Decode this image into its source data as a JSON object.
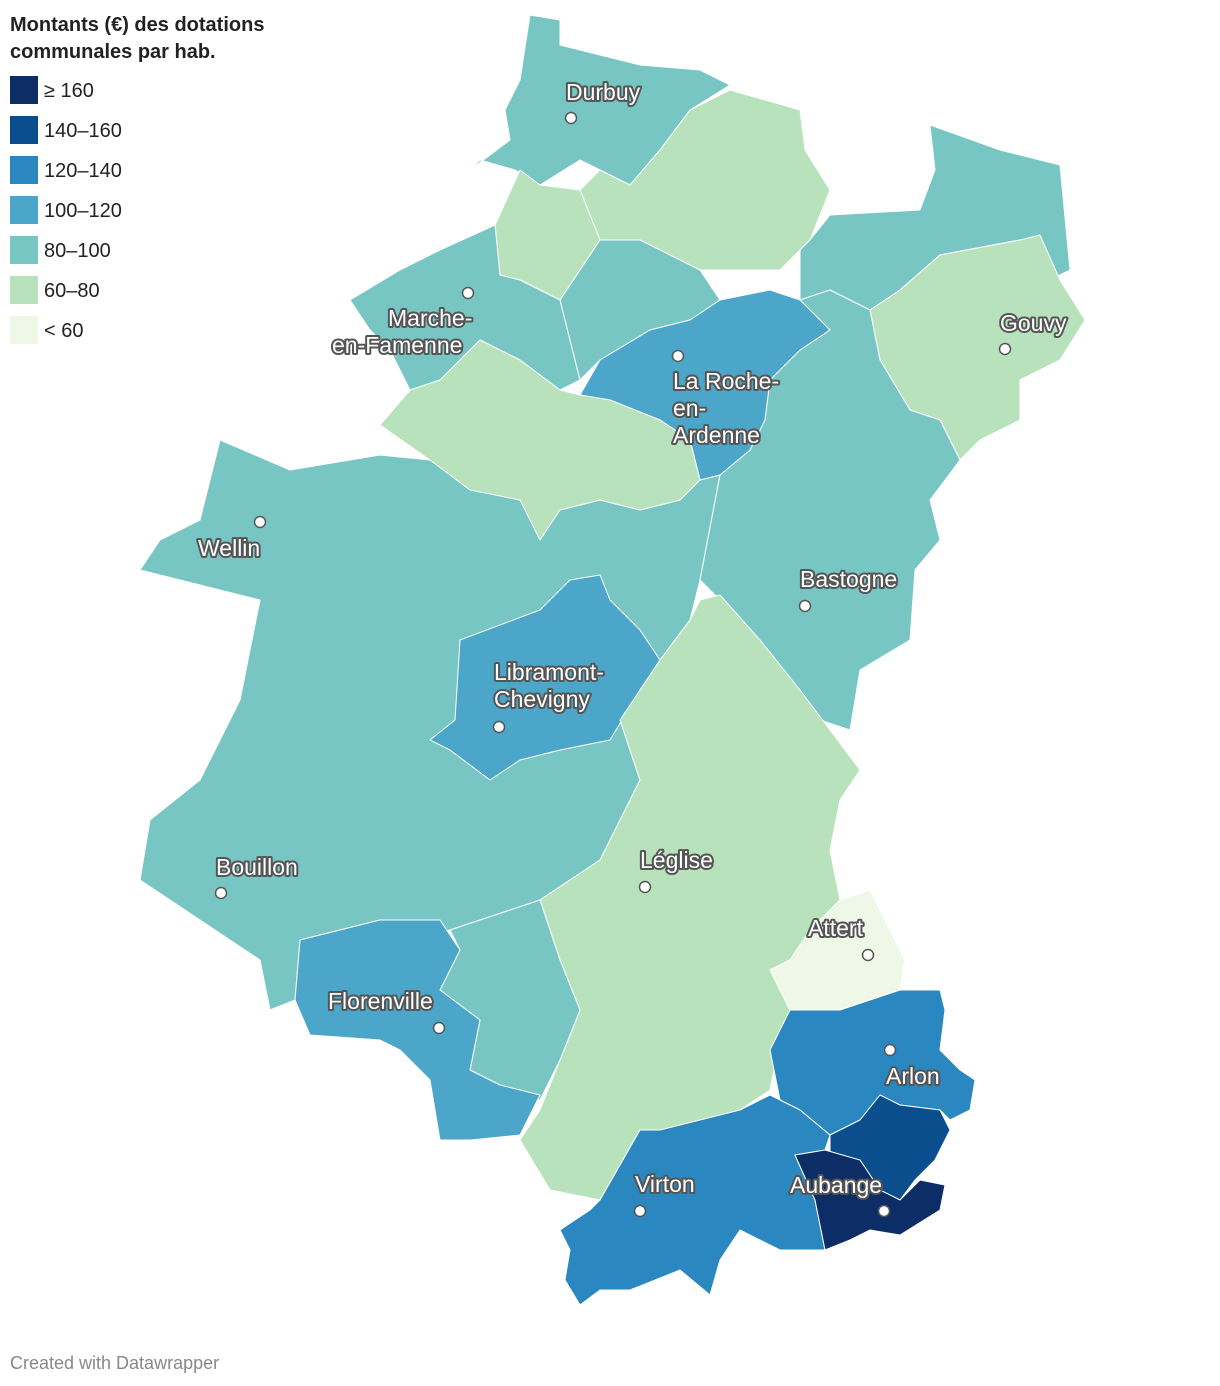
{
  "legend": {
    "title_lines": [
      "Montants (€) des dotations",
      "communales par hab."
    ],
    "entries": [
      {
        "label": "≥ 160",
        "color": "#0c2d66"
      },
      {
        "label": "140–160",
        "color": "#0b4e8e"
      },
      {
        "label": "120–140",
        "color": "#2a87bf"
      },
      {
        "label": "100–120",
        "color": "#4ba6c9"
      },
      {
        "label": "80–100",
        "color": "#78c6c4"
      },
      {
        "label": "60–80",
        "color": "#b8e2bb"
      },
      {
        "label": "< 60",
        "color": "#eff8e6"
      }
    ]
  },
  "cities": [
    {
      "lines": [
        "Durbuy"
      ]
    },
    {
      "lines": [
        "Marche-",
        "en-Famenne"
      ]
    },
    {
      "lines": [
        "Gouvy"
      ]
    },
    {
      "lines": [
        "La Roche-",
        "en-",
        "Ardenne"
      ]
    },
    {
      "lines": [
        "Wellin"
      ]
    },
    {
      "lines": [
        "Bastogne"
      ]
    },
    {
      "lines": [
        "Libramont-",
        "Chevigny"
      ]
    },
    {
      "lines": [
        "Léglise"
      ]
    },
    {
      "lines": [
        "Bouillon"
      ]
    },
    {
      "lines": [
        "Attert"
      ]
    },
    {
      "lines": [
        "Florenville"
      ]
    },
    {
      "lines": [
        "Arlon"
      ]
    },
    {
      "lines": [
        "Aubange"
      ]
    },
    {
      "lines": [
        "Virton"
      ]
    }
  ],
  "footer": "Created with Datawrapper"
}
